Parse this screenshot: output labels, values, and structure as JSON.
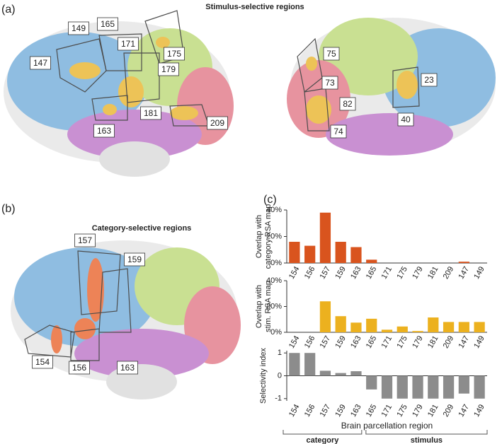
{
  "panel_labels": [
    "(a)",
    "(b)",
    "(c)"
  ],
  "stimulus_brain": {
    "title": "Stimulus-selective regions",
    "left_labels": [
      "149",
      "165",
      "147",
      "171",
      "175",
      "179",
      "181",
      "163",
      "209"
    ],
    "right_labels": [
      "75",
      "73",
      "82",
      "74",
      "23",
      "40"
    ]
  },
  "category_brain": {
    "title": "Category-selective regions",
    "labels": [
      "157",
      "159",
      "154",
      "156",
      "163"
    ]
  },
  "chart_data": [
    {
      "type": "bar",
      "ylabel": [
        "Overlap with",
        "category RSA map"
      ],
      "color": "#d9541e",
      "categories": [
        "154",
        "156",
        "157",
        "159",
        "163",
        "165",
        "171",
        "175",
        "179",
        "181",
        "209",
        "147",
        "149"
      ],
      "values": [
        16,
        13,
        38,
        16,
        12,
        2.5,
        0,
        0,
        0,
        0,
        0,
        1,
        0
      ],
      "ylim": [
        0,
        40
      ],
      "yticks": [
        {
          "value": 0,
          "label": "0%"
        },
        {
          "value": 20,
          "label": "20%"
        },
        {
          "value": 40,
          "label": "40%"
        }
      ]
    },
    {
      "type": "bar",
      "ylabel": [
        "Overlap with",
        "stim. RSA map"
      ],
      "color": "#ecb11f",
      "categories": [
        "154",
        "156",
        "157",
        "159",
        "163",
        "165",
        "171",
        "175",
        "179",
        "181",
        "209",
        "147",
        "149"
      ],
      "values": [
        0,
        0,
        24,
        12.5,
        7.5,
        10.5,
        2,
        4.5,
        1,
        11.5,
        8,
        8,
        8
      ],
      "ylim": [
        0,
        40
      ],
      "yticks": [
        {
          "value": 0,
          "label": "0%"
        },
        {
          "value": 20,
          "label": "20%"
        },
        {
          "value": 40,
          "label": "40%"
        }
      ]
    },
    {
      "type": "bar",
      "ylabel": [
        "Selectivity index"
      ],
      "color": "#8c8c8c",
      "categories": [
        "154",
        "156",
        "157",
        "159",
        "163",
        "165",
        "171",
        "175",
        "179",
        "181",
        "209",
        "147",
        "149"
      ],
      "values": [
        1,
        1,
        0.22,
        0.12,
        0.2,
        -0.6,
        -1,
        -1,
        -1,
        -1,
        -1,
        -0.78,
        -1
      ],
      "ylim": [
        -1.1,
        1.1
      ],
      "yticks": [
        -1,
        0,
        1
      ],
      "xlabel": "Brain parcellation region",
      "groups": [
        "category",
        "stimulus"
      ]
    }
  ]
}
